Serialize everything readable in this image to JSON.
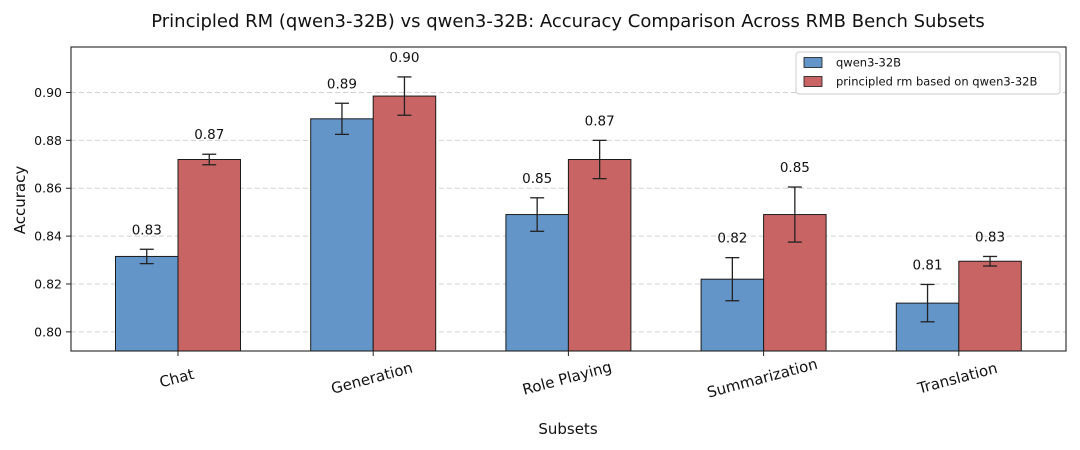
{
  "colors": {
    "series_1": "#6495c9",
    "series_2": "#c96464",
    "bar_edge": "#1a1a1a",
    "grid": "#d0d0d0"
  },
  "chart_data": {
    "type": "bar",
    "title": "Principled RM (qwen3-32B) vs qwen3-32B: Accuracy Comparison Across RMB Bench Subsets",
    "xlabel": "Subsets",
    "ylabel": "Accuracy",
    "ylim": [
      0.792,
      0.919
    ],
    "yticks": [
      0.8,
      0.82,
      0.84,
      0.86,
      0.88,
      0.9
    ],
    "ytick_labels": [
      "0.80",
      "0.82",
      "0.84",
      "0.86",
      "0.88",
      "0.90"
    ],
    "grid": true,
    "legend_position": "top-right",
    "categories": [
      "Chat",
      "Generation",
      "Role Playing",
      "Summarization",
      "Translation"
    ],
    "series": [
      {
        "name": "qwen3-32B",
        "values": [
          0.8315,
          0.889,
          0.849,
          0.822,
          0.812
        ],
        "errors": [
          0.003,
          0.0065,
          0.007,
          0.009,
          0.0078
        ],
        "value_labels": [
          "0.83",
          "0.89",
          "0.85",
          "0.82",
          "0.81"
        ]
      },
      {
        "name": "principled rm based on qwen3-32B",
        "values": [
          0.872,
          0.8985,
          0.872,
          0.849,
          0.8295
        ],
        "errors": [
          0.0022,
          0.008,
          0.008,
          0.0115,
          0.002
        ],
        "value_labels": [
          "0.87",
          "0.90",
          "0.87",
          "0.85",
          "0.83"
        ]
      }
    ]
  }
}
